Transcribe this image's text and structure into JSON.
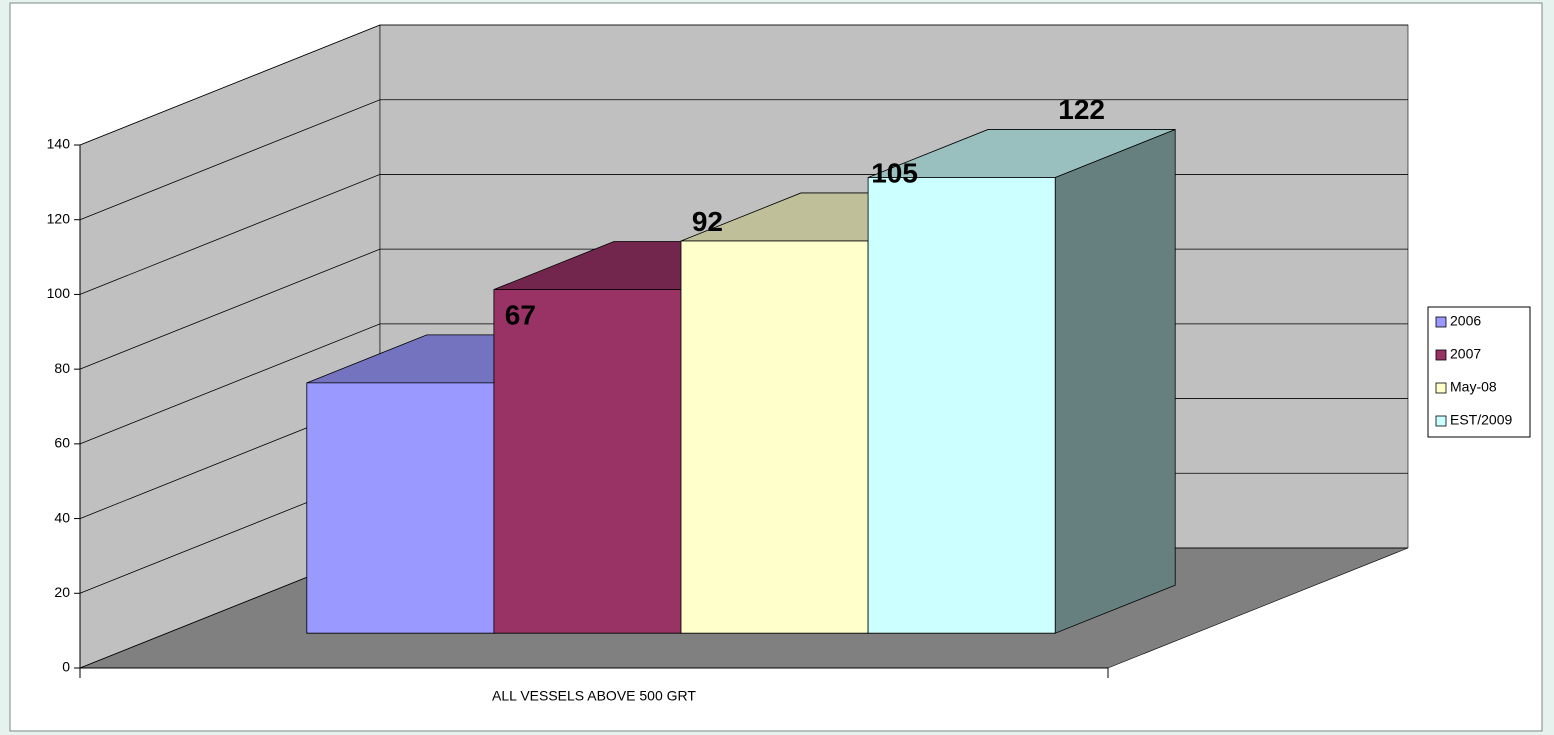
{
  "chart_data": {
    "type": "bar3d",
    "categories": [
      "ALL VESSELS ABOVE 500 GRT"
    ],
    "series": [
      {
        "name": "2006",
        "color": "#9999ff",
        "values": [
          67
        ]
      },
      {
        "name": "2007",
        "color": "#993366",
        "values": [
          92
        ]
      },
      {
        "name": "May-08",
        "color": "#ffffcc",
        "values": [
          105
        ]
      },
      {
        "name": "EST/2009",
        "color": "#ccffff",
        "values": [
          122
        ]
      }
    ],
    "ylim": [
      0,
      140
    ],
    "yticks": [
      0,
      20,
      40,
      60,
      80,
      100,
      120,
      140
    ],
    "grid": true,
    "legend": "right"
  }
}
